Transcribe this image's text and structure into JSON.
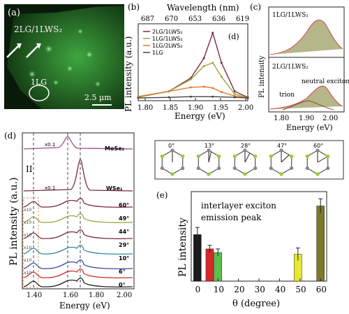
{
  "panel_a": {
    "label": "(a)",
    "sample": "2LG/1LWS₂",
    "region": "1LG",
    "scalebar": "2.5 μm"
  },
  "panel_b": {
    "label": "(b)",
    "top_axis_title": "Wavelength (nm)",
    "top_ticks": [
      "687",
      "670",
      "653",
      "636",
      "619"
    ],
    "y_title": "PL intensity (a.u.)",
    "x_title": "Energy (eV)",
    "x_ticks": [
      "1.80",
      "1.85",
      "1.90",
      "1.95",
      "2.00"
    ],
    "inner_label": "(d)"
  },
  "panel_c": {
    "label": "(c)",
    "top_text": "1LG/1LWS₂",
    "bottom_text": "2LG/1LWS₂",
    "neutral": "neutral exciton",
    "trion": "trion",
    "y_title": "PL intensity",
    "x_title": "Energy (eV)",
    "x_ticks": [
      "1.80",
      "1.90",
      "2.00"
    ]
  },
  "panel_d": {
    "label": "(d)",
    "y_title": "PL intensity (a.u.)",
    "x_title": "Energy (eV)",
    "x_ticks": [
      "1.40",
      "1.60",
      "1.80",
      "2.00"
    ],
    "roman": "II",
    "x01a": "x0.1",
    "x01b": "x0.1",
    "mose2": "MoSe₂",
    "wse2": "WSe₂",
    "mult": "x10"
  },
  "angles_box": {
    "angles": [
      "0°",
      "13°",
      "28°",
      "47°",
      "60°"
    ]
  },
  "panel_e": {
    "label": "(e)",
    "annotation_1": "interlayer exciton",
    "annotation_2": "emission peak",
    "y_title": "PL intensity",
    "x_title": "θ (degree)",
    "x_ticks": [
      "0",
      "10",
      "20",
      "30",
      "40",
      "50",
      "60"
    ]
  },
  "chart_data": [
    {
      "type": "line",
      "panel": "b",
      "x_range": [
        1.78,
        2.03
      ],
      "series": [
        {
          "name": "2LG/1LWS₂",
          "color": "#7a2a3a",
          "x": [
            1.78,
            1.85,
            1.9,
            1.93,
            1.95,
            1.97,
            2.0,
            2.03
          ],
          "y": [
            0.04,
            0.12,
            0.32,
            0.62,
            1.0,
            0.55,
            0.12,
            0.03
          ]
        },
        {
          "name": "1LG/1LWS₂",
          "color": "#9aa63a",
          "x": [
            1.78,
            1.85,
            1.9,
            1.93,
            1.95,
            1.97,
            2.0,
            2.03
          ],
          "y": [
            0.03,
            0.12,
            0.3,
            0.5,
            0.55,
            0.34,
            0.08,
            0.02
          ]
        },
        {
          "name": "1LG/2LWS₂",
          "color": "#e07a30",
          "x": [
            1.78,
            1.85,
            1.9,
            1.93,
            1.95,
            1.97,
            2.0,
            2.03
          ],
          "y": [
            0.04,
            0.12,
            0.18,
            0.19,
            0.17,
            0.11,
            0.05,
            0.02
          ]
        },
        {
          "name": "1LG",
          "color": "#444444",
          "x": [
            1.78,
            1.85,
            1.9,
            1.95,
            2.0,
            2.03
          ],
          "y": [
            0.02,
            0.03,
            0.04,
            0.04,
            0.03,
            0.02
          ]
        }
      ]
    },
    {
      "type": "bar",
      "panel": "e",
      "x": [
        0,
        6,
        10,
        49,
        60
      ],
      "values": [
        0.52,
        0.36,
        0.32,
        0.3,
        0.84
      ],
      "errors": [
        0.08,
        0.04,
        0.04,
        0.07,
        0.08
      ],
      "colors": [
        "#1a1a1a",
        "#d42a2a",
        "#5cc04a",
        "#e8e830",
        "#7a7a28"
      ],
      "xlim": [
        -3,
        63
      ],
      "ylim": [
        0,
        1
      ]
    }
  ]
}
